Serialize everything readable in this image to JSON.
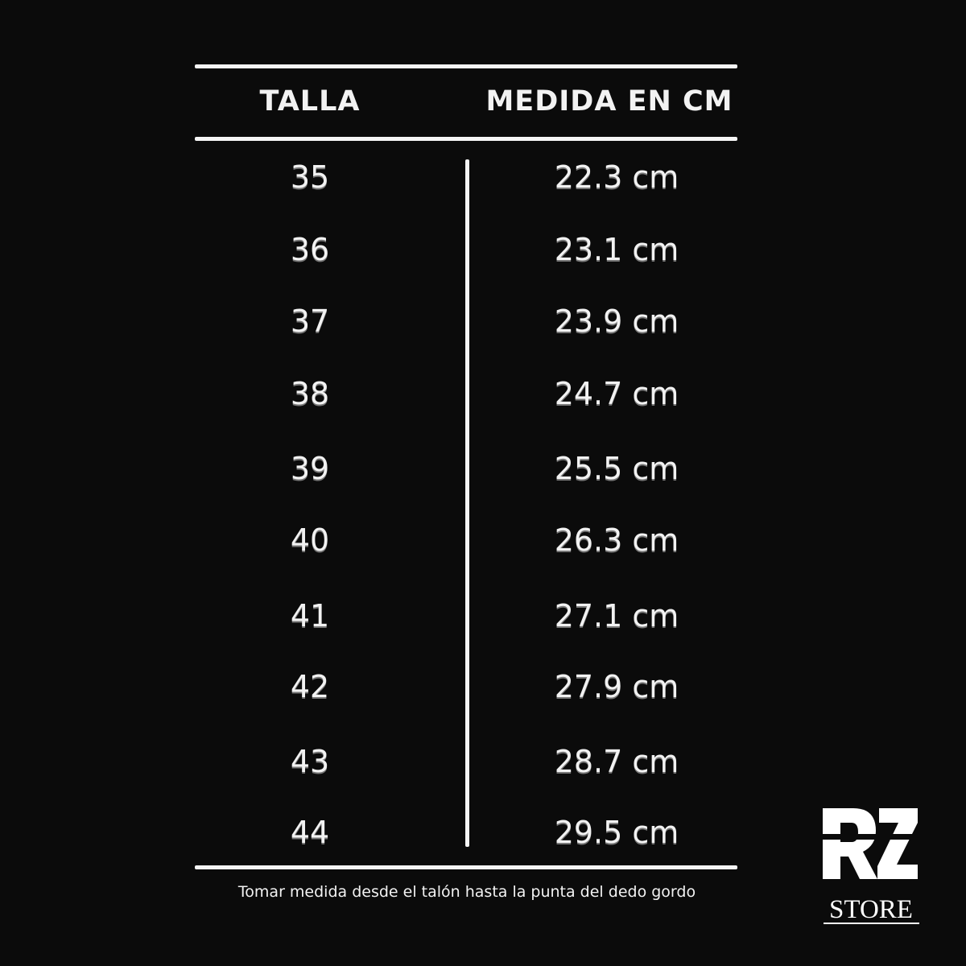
{
  "table": {
    "headers": [
      "TALLA",
      "MEDIDA EN CM"
    ],
    "rows": [
      {
        "size": "35",
        "measure": "22.3 cm"
      },
      {
        "size": "36",
        "measure": "23.1 cm"
      },
      {
        "size": "37",
        "measure": "23.9 cm"
      },
      {
        "size": "38",
        "measure": "24.7 cm"
      },
      {
        "size": "39",
        "measure": "25.5 cm"
      },
      {
        "size": "40",
        "measure": "26.3 cm"
      },
      {
        "size": "41",
        "measure": "27.1 cm"
      },
      {
        "size": "42",
        "measure": "27.9 cm"
      },
      {
        "size": "43",
        "measure": "28.7 cm"
      },
      {
        "size": "44",
        "measure": "29.5 cm"
      }
    ]
  },
  "footer": "Tomar medida desde el talón hasta la punta del dedo gordo",
  "logo": {
    "text": "RZ STORE",
    "store": "STORE"
  },
  "colors": {
    "background": "#0b0b0b",
    "foreground": "#f5f5f5"
  }
}
